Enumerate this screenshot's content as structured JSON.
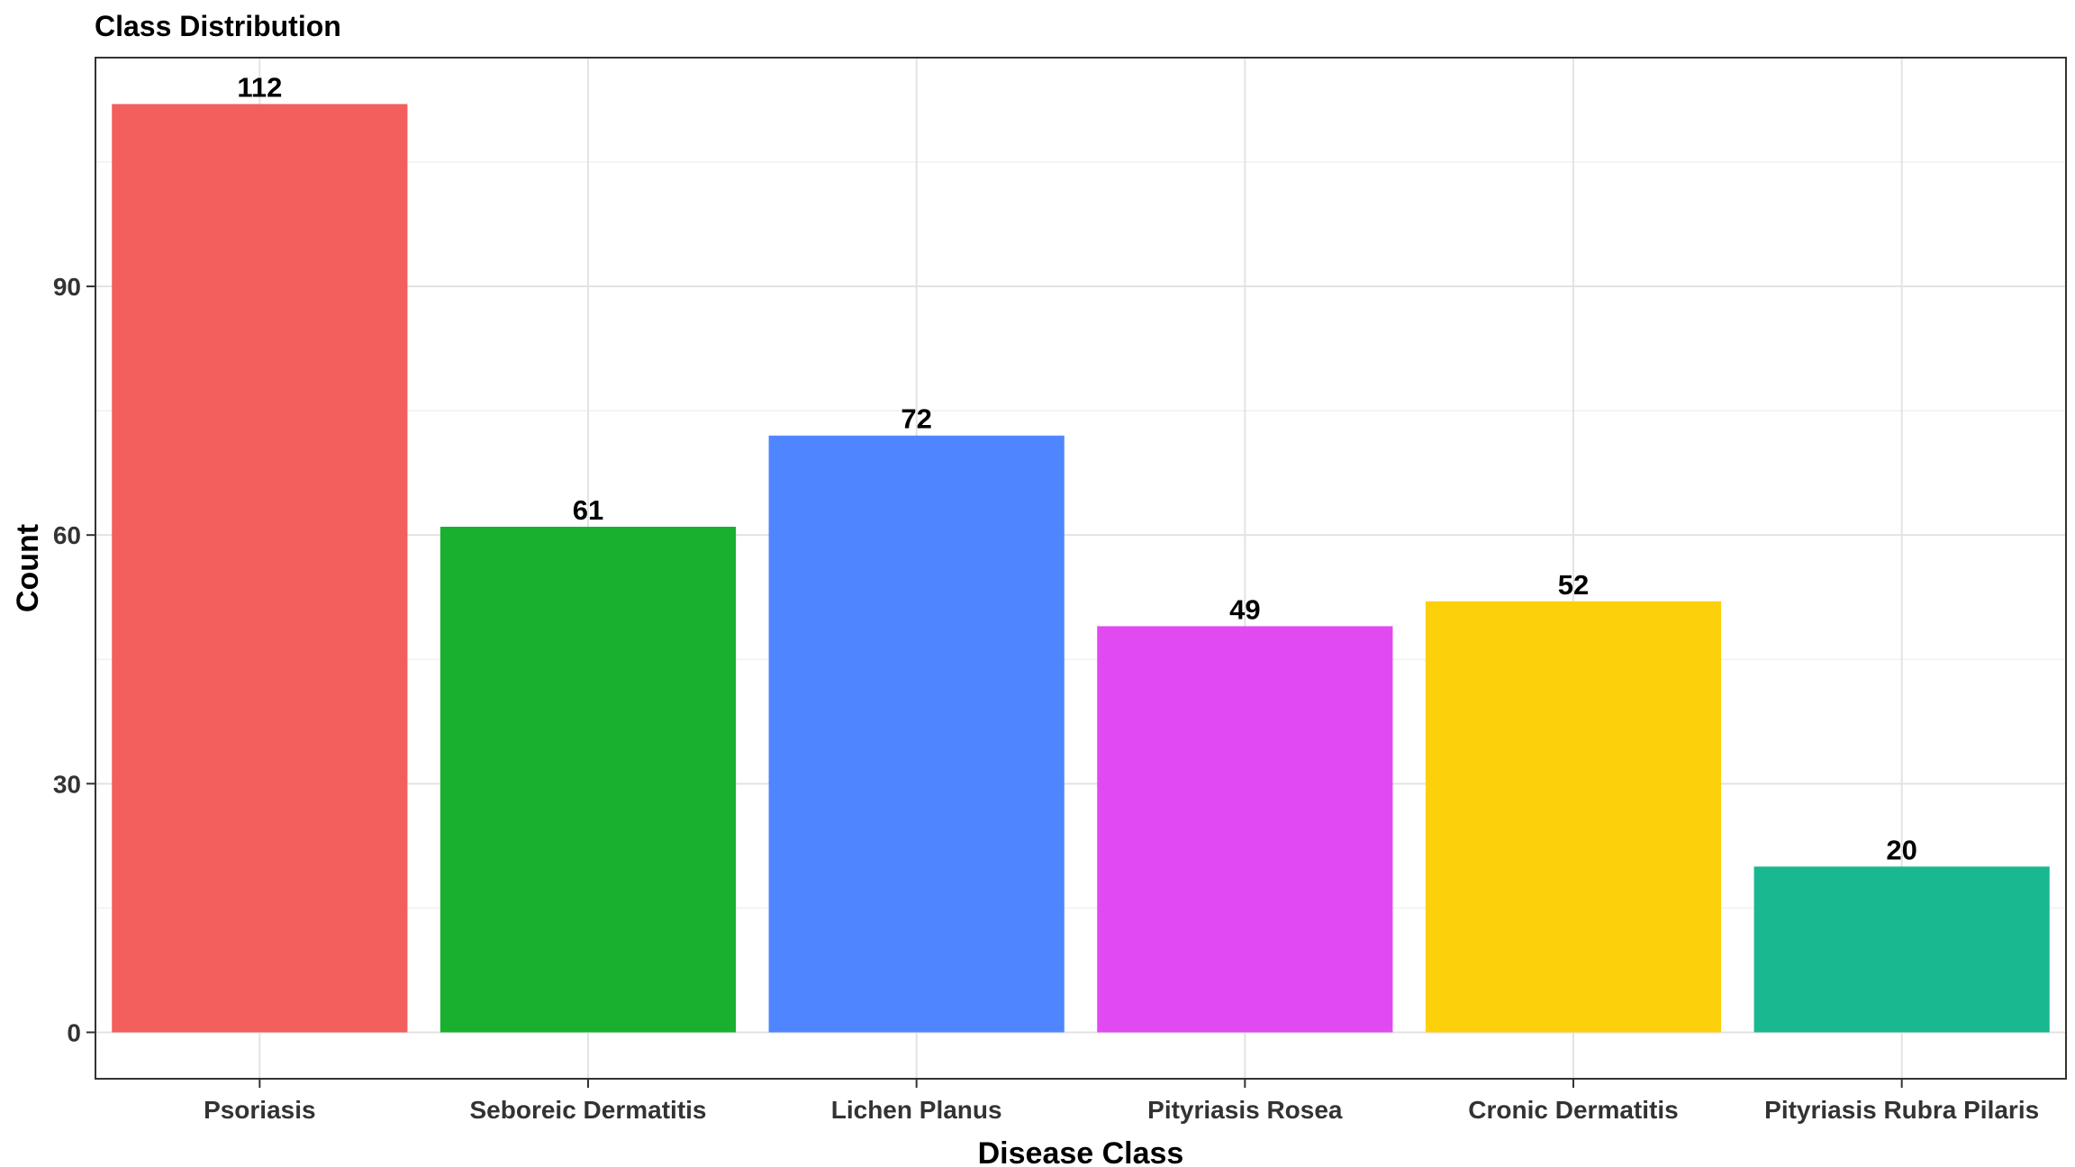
{
  "chart_data": {
    "type": "bar",
    "title": "Class Distribution",
    "xlabel": "Disease Class",
    "ylabel": "Count",
    "categories": [
      "Psoriasis",
      "Seboreic Dermatitis",
      "Lichen Planus",
      "Pityriasis Rosea",
      "Cronic Dermatitis",
      "Pityriasis Rubra Pilaris"
    ],
    "values": [
      112,
      61,
      72,
      49,
      52,
      20
    ],
    "colors": [
      "#F25F5C",
      "#19B030",
      "#4F86FF",
      "#E04AF0",
      "#FDD00C",
      "#19B890"
    ],
    "yticks": [
      0,
      30,
      60,
      90
    ],
    "ylim": [
      -5.6,
      117.6
    ],
    "grid": true,
    "legend": "none"
  }
}
